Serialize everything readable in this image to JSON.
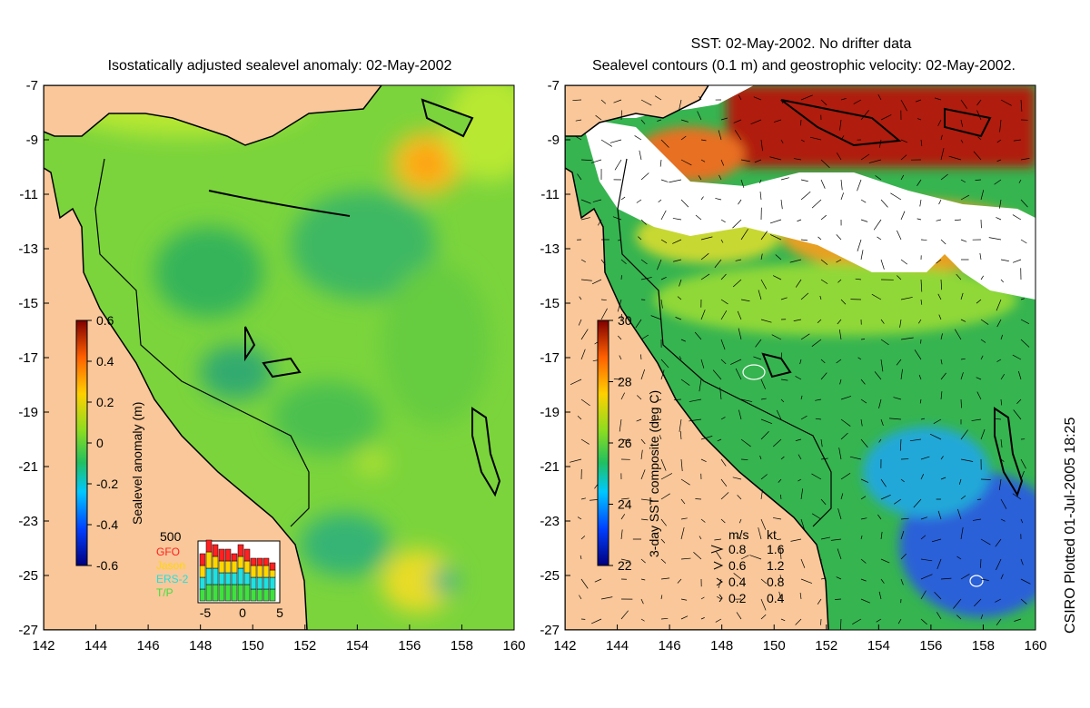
{
  "left_panel": {
    "title": "Isostatically adjusted sealevel anomaly: 02-May-2002",
    "x_ticks": [
      "142",
      "144",
      "146",
      "148",
      "150",
      "152",
      "154",
      "156",
      "158",
      "160"
    ],
    "y_ticks": [
      "-7",
      "-9",
      "-11",
      "-13",
      "-15",
      "-17",
      "-19",
      "-21",
      "-23",
      "-25",
      "-27"
    ],
    "colorbar": {
      "label": "Sealevel anomaly (m)",
      "ticks": [
        "0.6",
        "0.4",
        "0.2",
        "0",
        "-0.2",
        "-0.4",
        "-0.6"
      ],
      "range": [
        -0.6,
        0.6
      ]
    },
    "satellite_inset": {
      "scale_label": "500",
      "missions": [
        {
          "name": "GFO",
          "color": "#ff2020"
        },
        {
          "name": "Jason",
          "color": "#ffd700"
        },
        {
          "name": "ERS-2",
          "color": "#20e0e0"
        },
        {
          "name": "T/P",
          "color": "#40e040"
        }
      ],
      "x_ticks": [
        "-5",
        "0",
        "5"
      ],
      "stacks": [
        [
          2,
          2,
          2,
          2
        ],
        [
          2,
          3,
          3,
          3
        ],
        [
          2,
          2,
          3,
          3
        ],
        [
          2,
          2,
          2,
          3
        ],
        [
          2,
          2,
          2,
          3
        ],
        [
          1,
          2,
          2,
          3
        ],
        [
          2,
          2,
          3,
          3
        ],
        [
          2,
          2,
          2,
          3
        ],
        [
          1,
          2,
          2,
          2
        ],
        [
          1,
          2,
          2,
          2
        ],
        [
          1,
          2,
          2,
          2
        ],
        [
          1,
          1,
          2,
          2
        ]
      ]
    }
  },
  "right_panel": {
    "title_line1": "SST: 02-May-2002. No drifter data",
    "title_line2": "Sealevel contours (0.1 m) and geostrophic velocity: 02-May-2002.",
    "x_ticks": [
      "142",
      "144",
      "146",
      "148",
      "150",
      "152",
      "154",
      "156",
      "158",
      "160"
    ],
    "y_ticks": [
      "-7",
      "-9",
      "-11",
      "-13",
      "-15",
      "-17",
      "-19",
      "-21",
      "-23",
      "-25",
      "-27"
    ],
    "colorbar": {
      "label": "3-day SST composite (deg C)",
      "ticks": [
        "30",
        "28",
        "26",
        "24",
        "22"
      ],
      "range": [
        22,
        30
      ]
    },
    "velocity_key": {
      "header_ms": "m/s",
      "header_kt": "kt",
      "rows": [
        {
          "ms": "0.8",
          "kt": "1.6"
        },
        {
          "ms": "0.6",
          "kt": "1.2"
        },
        {
          "ms": "0.4",
          "kt": "0.8"
        },
        {
          "ms": "0.2",
          "kt": "0.4"
        }
      ]
    }
  },
  "colors": {
    "land": "#f9c799",
    "ocean_mid": "#6ed23a",
    "no_data": "#ffffff"
  },
  "credit": "CSIRO Plotted 01-Jul-2005 18:25"
}
